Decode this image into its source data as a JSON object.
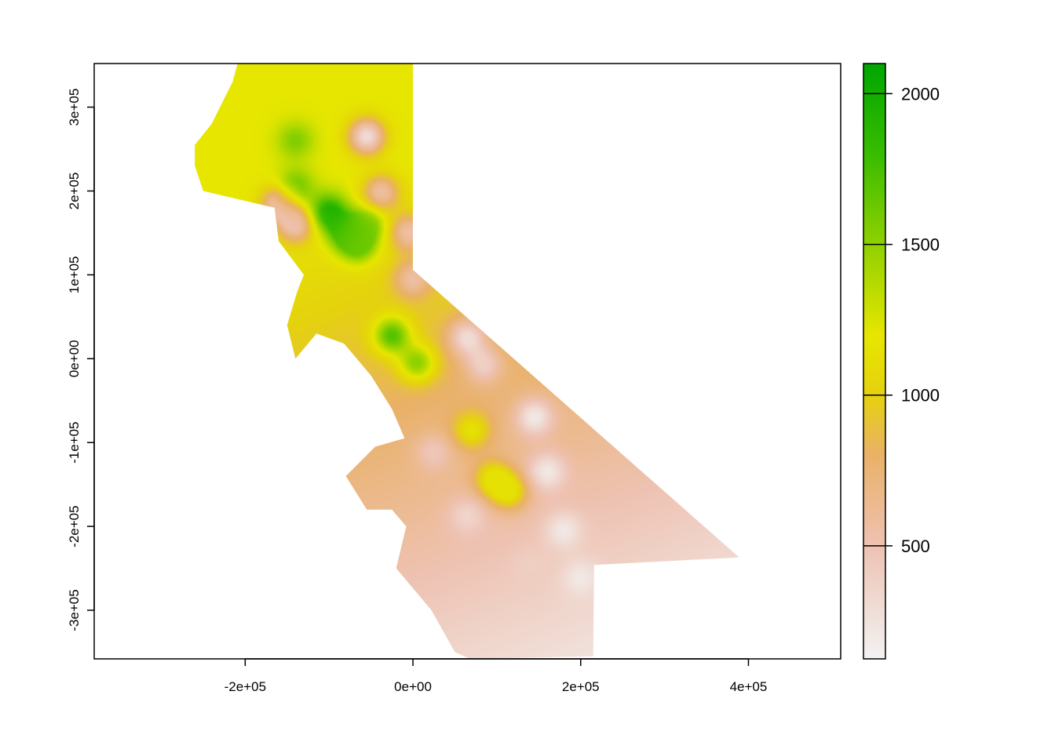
{
  "map": {
    "x_axis": {
      "range": [
        -380000,
        510000
      ],
      "ticks": [
        -200000,
        0,
        200000,
        400000
      ],
      "tick_labels": [
        "-2e+05",
        "0e+00",
        "2e+05",
        "4e+05"
      ]
    },
    "y_axis": {
      "range": [
        -358000,
        352000
      ],
      "ticks": [
        300000,
        200000,
        100000,
        0,
        -100000,
        -200000,
        -300000
      ],
      "tick_labels": [
        "3e+05",
        "2e+05",
        "1e+05",
        "0e+00",
        "-1e+05",
        "-2e+05",
        "-3e+05"
      ]
    },
    "region_boundary": [
      [
        -209000,
        352000
      ],
      [
        0,
        352000
      ],
      [
        0,
        106000
      ],
      [
        389000,
        -237000
      ],
      [
        216000,
        -246000
      ],
      [
        215000,
        -355000
      ],
      [
        68000,
        -358000
      ],
      [
        50000,
        -350000
      ],
      [
        22000,
        -300000
      ],
      [
        -20000,
        -250000
      ],
      [
        -8000,
        -200000
      ],
      [
        -25000,
        -180000
      ],
      [
        -55000,
        -180000
      ],
      [
        -80000,
        -140000
      ],
      [
        -45000,
        -105000
      ],
      [
        -10000,
        -95000
      ],
      [
        -25000,
        -60000
      ],
      [
        -50000,
        -20000
      ],
      [
        -82000,
        18000
      ],
      [
        -115000,
        30000
      ],
      [
        -140000,
        0
      ],
      [
        -150000,
        40000
      ],
      [
        -138000,
        80000
      ],
      [
        -130000,
        100000
      ],
      [
        -160000,
        140000
      ],
      [
        -165000,
        180000
      ],
      [
        -250000,
        200000
      ],
      [
        -260000,
        230000
      ],
      [
        -260000,
        255000
      ],
      [
        -240000,
        280000
      ],
      [
        -225000,
        310000
      ],
      [
        -215000,
        330000
      ]
    ],
    "surface": {
      "base_value": 700,
      "gradient": {
        "origin": [
          0,
          -120000
        ],
        "per_unit_x": -0.00055,
        "per_unit_y": 0.0014
      },
      "anomalies": [
        {
          "x": -100000,
          "y": 175000,
          "value": 1950
        },
        {
          "x": -80000,
          "y": 150000,
          "value": 1750
        },
        {
          "x": -140000,
          "y": 205000,
          "value": 1650
        },
        {
          "x": -140000,
          "y": 260000,
          "value": 1550
        },
        {
          "x": -55000,
          "y": 160000,
          "value": 1600
        },
        {
          "x": -65000,
          "y": 135000,
          "value": 1600
        },
        {
          "x": -25000,
          "y": 28000,
          "value": 1700
        },
        {
          "x": 5000,
          "y": -5000,
          "value": 1500
        },
        {
          "x": 70000,
          "y": -85000,
          "value": 1150
        },
        {
          "x": 95000,
          "y": -143000,
          "value": 1150
        },
        {
          "x": 115000,
          "y": -158000,
          "value": 1150
        },
        {
          "x": -55000,
          "y": 265000,
          "value": 300
        },
        {
          "x": -38000,
          "y": 198000,
          "value": 550
        },
        {
          "x": -160000,
          "y": 185000,
          "value": 500
        },
        {
          "x": -140000,
          "y": 160000,
          "value": 500
        },
        {
          "x": -5000,
          "y": 150000,
          "value": 550
        },
        {
          "x": 0,
          "y": 95000,
          "value": 550
        },
        {
          "x": 65000,
          "y": 25000,
          "value": 300
        },
        {
          "x": 85000,
          "y": -8000,
          "value": 400
        },
        {
          "x": 145000,
          "y": -70000,
          "value": 200
        },
        {
          "x": 160000,
          "y": -135000,
          "value": 200
        },
        {
          "x": 180000,
          "y": -205000,
          "value": 200
        },
        {
          "x": 200000,
          "y": -262000,
          "value": 200
        },
        {
          "x": 65000,
          "y": -188000,
          "value": 350
        },
        {
          "x": 140000,
          "y": -248000,
          "value": 400
        },
        {
          "x": 25000,
          "y": -112000,
          "value": 450
        }
      ]
    },
    "color_scale": {
      "min": 125,
      "max": 2100,
      "stops": [
        {
          "value": 125,
          "color": "#f2f2f2"
        },
        {
          "value": 500,
          "color": "#eec2b2"
        },
        {
          "value": 800,
          "color": "#e9b168"
        },
        {
          "value": 1000,
          "color": "#e5d20e"
        },
        {
          "value": 1200,
          "color": "#e6e600"
        },
        {
          "value": 1500,
          "color": "#8fd100"
        },
        {
          "value": 1800,
          "color": "#38bc00"
        },
        {
          "value": 2100,
          "color": "#00a600"
        }
      ]
    },
    "legend": {
      "ticks": [
        500,
        1000,
        1500,
        2000
      ],
      "tick_labels": [
        "500",
        "1000",
        "1500",
        "2000"
      ]
    }
  }
}
